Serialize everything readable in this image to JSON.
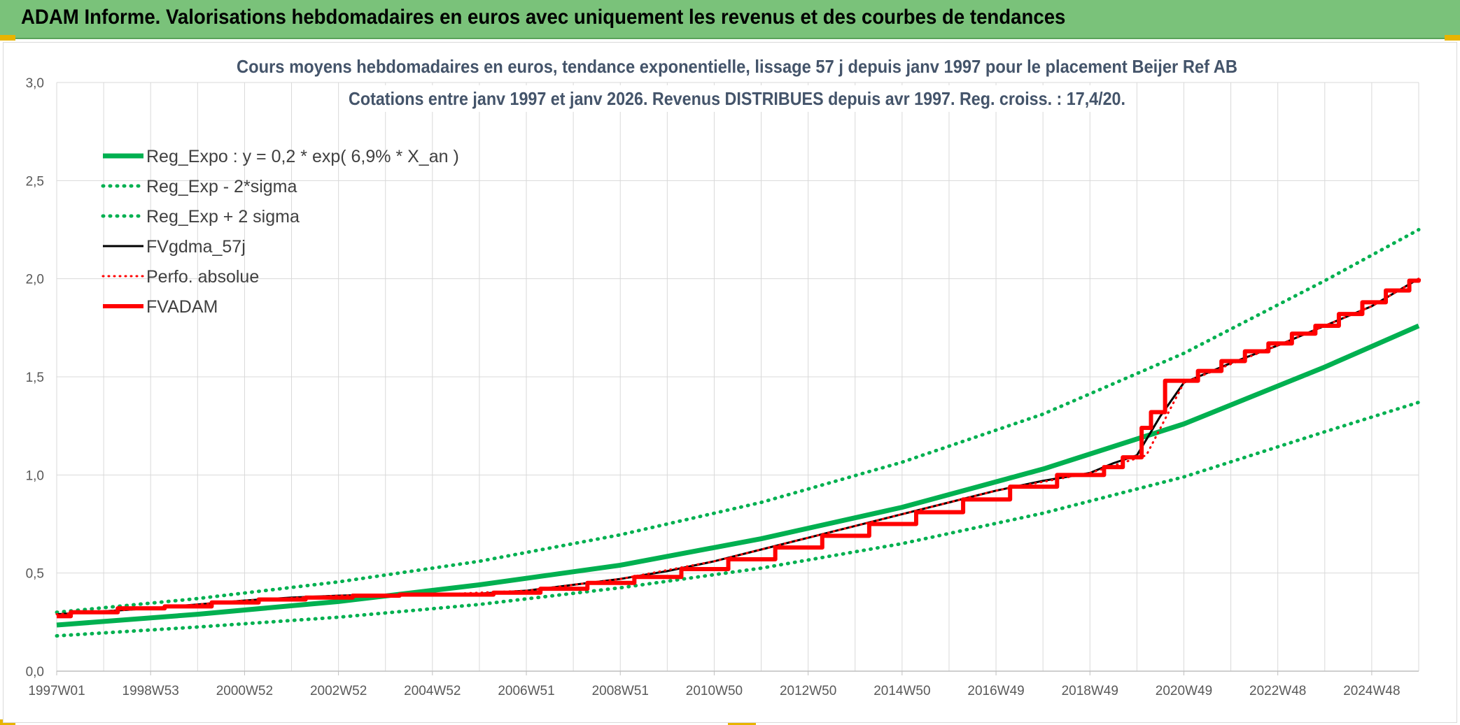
{
  "header": {
    "title": "ADAM Informe. Valorisations hebdomadaires en euros avec uniquement les revenus et des courbes de tendances"
  },
  "colors": {
    "header_bg": "#7ac27a",
    "reg_green": "#00b050",
    "fv_black": "#000000",
    "adam_red": "#ff0000"
  },
  "chart_data": {
    "type": "line",
    "title_lines": [
      "Cours moyens hebdomadaires en euros, tendance exponentielle, lissage 57 j depuis janv 1997 pour le placement Beijer Ref AB",
      "Cotations entre janv 1997 et janv 2026. Revenus DISTRIBUES depuis avr 1997. Reg. croiss. : 17,4/20."
    ],
    "xlim": [
      1997.0,
      2026.0
    ],
    "x_ticks": [
      {
        "label": "1997W01",
        "x": 1997.0
      },
      {
        "label": "1998W53",
        "x": 1999.0
      },
      {
        "label": "2000W52",
        "x": 2001.0
      },
      {
        "label": "2002W52",
        "x": 2003.0
      },
      {
        "label": "2004W52",
        "x": 2005.0
      },
      {
        "label": "2006W51",
        "x": 2007.0
      },
      {
        "label": "2008W51",
        "x": 2009.0
      },
      {
        "label": "2010W50",
        "x": 2011.0
      },
      {
        "label": "2012W50",
        "x": 2013.0
      },
      {
        "label": "2014W50",
        "x": 2015.0
      },
      {
        "label": "2016W49",
        "x": 2017.0
      },
      {
        "label": "2018W49",
        "x": 2019.0
      },
      {
        "label": "2020W49",
        "x": 2021.0
      },
      {
        "label": "2022W48",
        "x": 2023.0
      },
      {
        "label": "2024W48",
        "x": 2025.0
      }
    ],
    "ylim": [
      0.0,
      3.0
    ],
    "y_ticks": [
      {
        "label": "0,0",
        "v": 0.0
      },
      {
        "label": "0,5",
        "v": 0.5
      },
      {
        "label": "1,0",
        "v": 1.0
      },
      {
        "label": "1,5",
        "v": 1.5
      },
      {
        "label": "2,0",
        "v": 2.0
      },
      {
        "label": "2,5",
        "v": 2.5
      },
      {
        "label": "3,0",
        "v": 3.0
      }
    ],
    "grid": true,
    "legend_position": "top-left",
    "series": [
      {
        "name": "Reg_Expo : y = 0,2 * exp( 6,9% *  X_an )",
        "color": "#00b050",
        "style": "solid",
        "width": 7,
        "x": [
          1997.0,
          2000.0,
          2003.0,
          2006.0,
          2009.0,
          2012.0,
          2015.0,
          2018.0,
          2021.0,
          2024.0,
          2026.0
        ],
        "y": [
          0.235,
          0.29,
          0.355,
          0.44,
          0.54,
          0.675,
          0.835,
          1.03,
          1.26,
          1.55,
          1.76
        ]
      },
      {
        "name": "Reg_Exp - 2*sigma",
        "color": "#00b050",
        "style": "dotted",
        "width": 5,
        "x": [
          1997.0,
          2000.0,
          2003.0,
          2006.0,
          2009.0,
          2012.0,
          2015.0,
          2018.0,
          2021.0,
          2024.0,
          2026.0
        ],
        "y": [
          0.18,
          0.225,
          0.275,
          0.34,
          0.425,
          0.525,
          0.65,
          0.805,
          0.99,
          1.22,
          1.37
        ]
      },
      {
        "name": "Reg_Exp + 2 sigma",
        "color": "#00b050",
        "style": "dotted",
        "width": 5,
        "x": [
          1997.0,
          2000.0,
          2003.0,
          2006.0,
          2009.0,
          2012.0,
          2015.0,
          2018.0,
          2021.0,
          2024.0,
          2026.0
        ],
        "y": [
          0.3,
          0.37,
          0.455,
          0.56,
          0.695,
          0.86,
          1.065,
          1.31,
          1.62,
          1.99,
          2.25
        ]
      },
      {
        "name": "FVgdma_57j",
        "color": "#000000",
        "style": "solid",
        "width": 3,
        "x": [
          1997.0,
          1998.0,
          1999.0,
          2000.0,
          2001.0,
          2002.0,
          2003.0,
          2004.0,
          2005.0,
          2006.0,
          2007.0,
          2008.0,
          2009.0,
          2010.0,
          2011.0,
          2012.0,
          2013.0,
          2014.0,
          2015.0,
          2016.0,
          2017.0,
          2018.0,
          2019.0,
          2019.5,
          2020.0,
          2020.5,
          2021.0,
          2021.5,
          2022.0,
          2023.0,
          2024.0,
          2025.0,
          2026.0
        ],
        "y": [
          0.29,
          0.305,
          0.32,
          0.34,
          0.36,
          0.375,
          0.385,
          0.39,
          0.39,
          0.395,
          0.41,
          0.44,
          0.47,
          0.51,
          0.56,
          0.62,
          0.68,
          0.74,
          0.8,
          0.86,
          0.92,
          0.97,
          1.01,
          1.06,
          1.1,
          1.3,
          1.47,
          1.52,
          1.57,
          1.66,
          1.76,
          1.86,
          2.0
        ]
      },
      {
        "name": "Perfo. absolue",
        "color": "#ff0000",
        "style": "dotted",
        "width": 3,
        "x": [
          1997.0,
          1999.0,
          2001.0,
          2003.0,
          2005.0,
          2007.0,
          2009.0,
          2011.0,
          2013.0,
          2015.0,
          2017.0,
          2019.0,
          2020.2,
          2021.0,
          2023.0,
          2025.0,
          2026.0
        ],
        "y": [
          0.29,
          0.32,
          0.36,
          0.385,
          0.39,
          0.41,
          0.47,
          0.56,
          0.68,
          0.8,
          0.92,
          1.01,
          1.1,
          1.47,
          1.66,
          1.86,
          2.0
        ]
      },
      {
        "name": "FVADAM",
        "color": "#ff0000",
        "style": "step",
        "width": 6,
        "x": [
          1997.0,
          1997.3,
          1998.3,
          1999.3,
          2000.3,
          2001.3,
          2002.3,
          2003.3,
          2004.3,
          2006.3,
          2007.3,
          2008.3,
          2009.3,
          2010.3,
          2011.3,
          2012.3,
          2013.3,
          2014.3,
          2015.3,
          2016.3,
          2017.3,
          2018.3,
          2019.3,
          2019.7,
          2020.1,
          2020.3,
          2020.6,
          2021.3,
          2021.8,
          2022.3,
          2022.8,
          2023.3,
          2023.8,
          2024.3,
          2024.8,
          2025.3,
          2025.8,
          2026.0
        ],
        "y": [
          0.28,
          0.3,
          0.32,
          0.33,
          0.35,
          0.365,
          0.375,
          0.385,
          0.39,
          0.4,
          0.42,
          0.45,
          0.48,
          0.52,
          0.57,
          0.63,
          0.69,
          0.75,
          0.81,
          0.875,
          0.94,
          1.0,
          1.04,
          1.09,
          1.24,
          1.32,
          1.48,
          1.53,
          1.58,
          1.63,
          1.67,
          1.72,
          1.76,
          1.82,
          1.88,
          1.94,
          1.99,
          2.0
        ]
      }
    ]
  }
}
